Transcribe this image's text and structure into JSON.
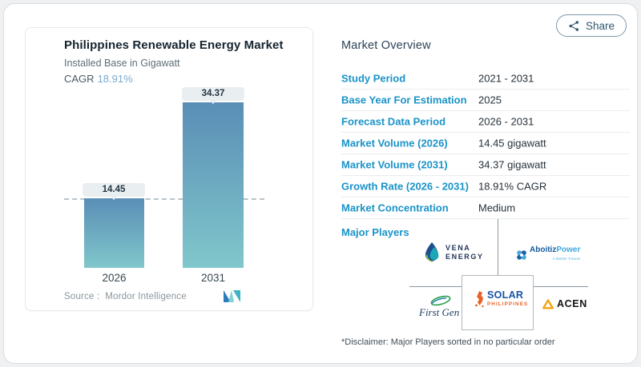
{
  "share": {
    "label": "Share"
  },
  "chart_card": {
    "title": "Philippines Renewable Energy Market",
    "subtitle": "Installed Base in Gigawatt",
    "cagr_label": "CAGR",
    "cagr_value": "18.91%",
    "source_label": "Source :",
    "source_name": "Mordor Intelligence"
  },
  "chart_data": {
    "type": "bar",
    "title": "Philippines Renewable Energy Market",
    "ylabel": "Installed Base in Gigawatt",
    "categories": [
      "2026",
      "2031"
    ],
    "values": [
      14.45,
      34.37
    ],
    "bar_labels": [
      "14.45",
      "34.37"
    ],
    "cagr_pct": "18.91%",
    "reference_line_value": 14.45,
    "ylim": [
      0,
      34.37
    ],
    "grid": false,
    "colors": {
      "bar_gradient_top": "#5a8eb6",
      "bar_gradient_bottom": "#80c7cb"
    }
  },
  "overview": {
    "heading": "Market Overview",
    "rows": [
      {
        "label": "Study Period",
        "value": "2021 - 2031"
      },
      {
        "label": "Base Year For Estimation",
        "value": "2025"
      },
      {
        "label": "Forecast Data Period",
        "value": "2026 - 2031"
      },
      {
        "label": "Market Volume (2026)",
        "value": "14.45 gigawatt"
      },
      {
        "label": "Market Volume (2031)",
        "value": "34.37 gigawatt"
      },
      {
        "label": "Growth Rate (2026 - 2031)",
        "value": "18.91% CAGR"
      },
      {
        "label": "Market Concentration",
        "value": "Medium"
      }
    ],
    "major_players_label": "Major Players",
    "players": {
      "vena": {
        "name": "Vena Energy",
        "line1": "VENA",
        "line2": "ENERGY"
      },
      "aboitiz": {
        "name": "AboitizPower",
        "part1": "Aboitiz",
        "part2": "Power",
        "tagline": "A Better Future"
      },
      "firstgen": {
        "name": "First Gen",
        "text": "First Gen"
      },
      "solar": {
        "name": "Solar Philippines",
        "line1": "SOLAR",
        "line2": "PHILIPPINES"
      },
      "acen": {
        "name": "ACEN",
        "text": "ACEN"
      }
    },
    "disclaimer": "*Disclaimer: Major Players sorted in no particular order"
  }
}
